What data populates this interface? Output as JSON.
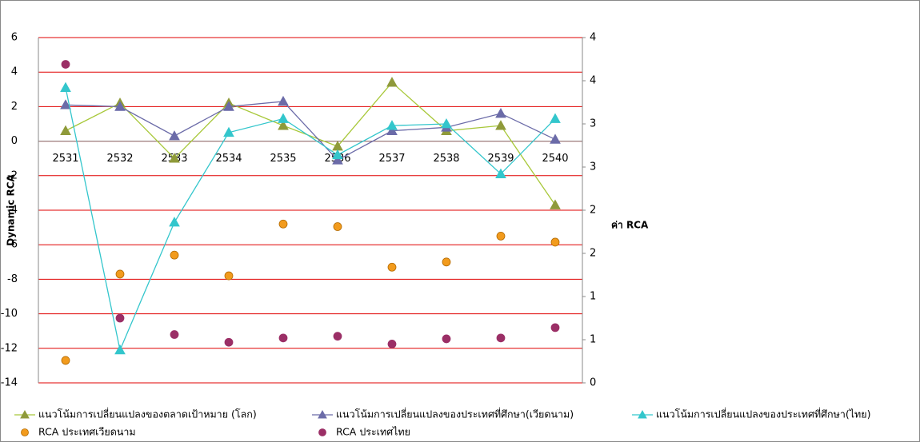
{
  "chart_data": {
    "type": "line",
    "categories": [
      "2531",
      "2532",
      "2533",
      "2534",
      "2535",
      "2536",
      "2537",
      "2538",
      "2539",
      "2540"
    ],
    "ylabel": "Dynamic RCA",
    "y2label": "ค่า RCA",
    "ylim": [
      -14,
      6
    ],
    "yticks": [
      -14,
      -12,
      -10,
      -8,
      -6,
      -4,
      -2,
      0,
      2,
      4,
      6
    ],
    "y2lim": [
      0,
      4
    ],
    "y2ticks": [
      0,
      {
        "value": 0.5,
        "label": "1"
      },
      1,
      {
        "value": 1.5,
        "label": "2"
      },
      2,
      {
        "value": 2.5,
        "label": "3"
      },
      3,
      {
        "value": 3.5,
        "label": "4"
      },
      4
    ],
    "grid": true,
    "grid_color": "#e00000",
    "series": [
      {
        "name": "แนวโน้มการเปลี่ยนแปลงของตลาดเป้าหมาย (โลก)",
        "color": "#a8c83a",
        "marker_color": "#8f9a3a",
        "marker": "triangle",
        "mode": "lines+markers",
        "values": [
          0.6,
          2.2,
          -1.0,
          2.2,
          0.9,
          -0.3,
          3.4,
          0.6,
          0.9,
          -3.7
        ]
      },
      {
        "name": "แนวโน้มการเปลี่ยนแปลงของประเทศที่ศึกษา(เวียดนาม)",
        "color": "#6b6ba8",
        "marker_color": "#6b6ba8",
        "marker": "triangle",
        "mode": "lines+markers",
        "values": [
          2.1,
          2.0,
          0.3,
          2.0,
          2.3,
          -1.1,
          0.6,
          0.8,
          1.6,
          0.1
        ]
      },
      {
        "name": "แนวโน้มการเปลี่ยนแปลงของประเทศที่ศึกษา(ไทย)",
        "color": "#33c6cc",
        "marker_color": "#33c6cc",
        "marker": "triangle",
        "mode": "lines+markers",
        "values": [
          3.1,
          -12.1,
          -4.7,
          0.5,
          1.3,
          -0.8,
          0.9,
          1.0,
          -1.9,
          1.3
        ]
      },
      {
        "name": "RCA ประเทศเวียดนาม",
        "color": "#f29b1d",
        "marker": "circle",
        "mode": "markers",
        "axis": "y2",
        "values": [
          0.26,
          1.26,
          1.48,
          1.24,
          1.84,
          1.81,
          1.34,
          1.4,
          1.7,
          1.63
        ]
      },
      {
        "name": "RCA ประเทศไทย",
        "color": "#9b2f66",
        "marker": "circle",
        "mode": "markers",
        "axis": "y2",
        "values": [
          3.69,
          0.75,
          0.56,
          0.47,
          0.52,
          0.54,
          0.45,
          0.51,
          0.52,
          0.64
        ]
      }
    ]
  }
}
